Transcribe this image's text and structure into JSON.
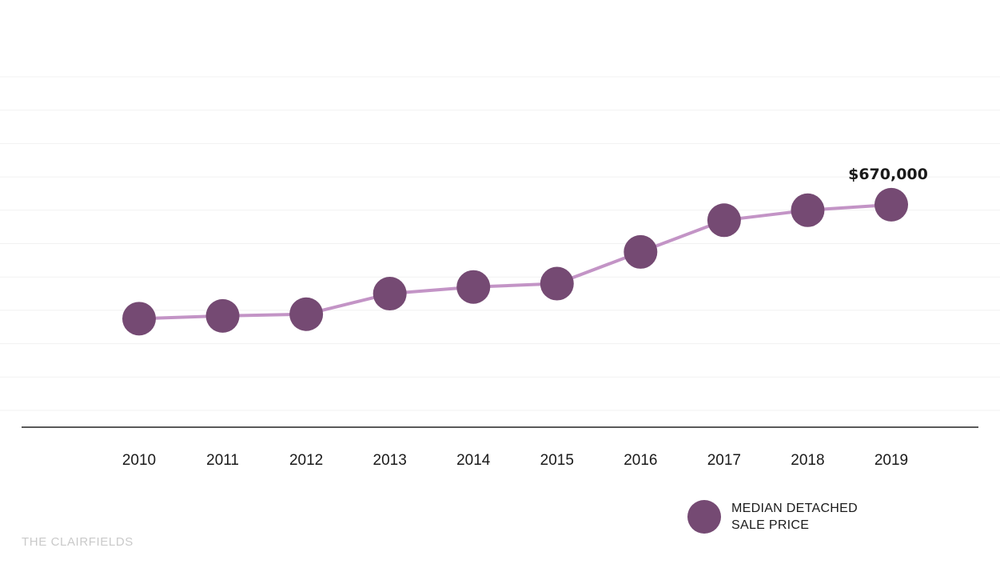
{
  "chart_data": {
    "type": "line",
    "categories": [
      "2010",
      "2011",
      "2012",
      "2013",
      "2014",
      "2015",
      "2016",
      "2017",
      "2018",
      "2019"
    ],
    "series": [
      {
        "name": "MEDIAN DETACHED SALE PRICE",
        "values": [
          465000,
          470000,
          473000,
          510000,
          522000,
          528000,
          585000,
          642000,
          660000,
          670000
        ]
      }
    ],
    "ylim": [
      300000,
      900000
    ],
    "gridlines": [
      300000,
      360000,
      420000,
      480000,
      540000,
      600000,
      660000,
      720000,
      780000,
      840000,
      900000
    ],
    "annotations": [
      {
        "index": 9,
        "text": "$670,000"
      }
    ],
    "grid": true,
    "legend_position": "bottom-right",
    "line_color": "#c394c6",
    "marker_color": "#754a73"
  },
  "legend": {
    "line1": "MEDIAN DETACHED",
    "line2": "SALE PRICE"
  },
  "branding": {
    "text": "THE CLAIRFIELDS"
  }
}
